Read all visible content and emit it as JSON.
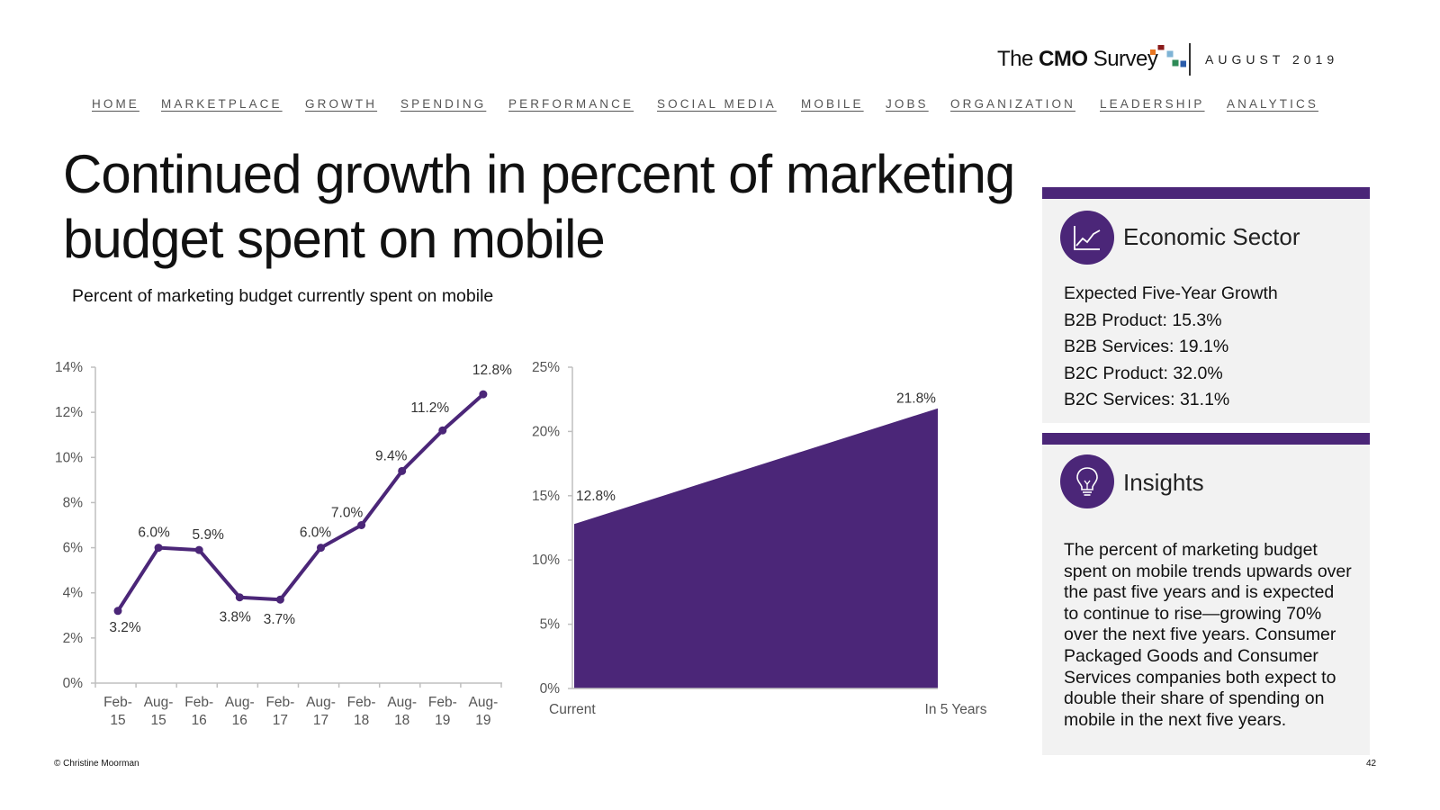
{
  "header": {
    "logo": {
      "pre": "The ",
      "bold": "CMO",
      "post": " Survey"
    },
    "date": "AUGUST 2019",
    "dot_colors": [
      "#e87722",
      "#8b1a1a",
      "#7fb3d5",
      "#2e8b57",
      "#2a5caa"
    ]
  },
  "nav": [
    "HOME",
    "MARKETPLACE",
    "GROWTH",
    "SPENDING",
    "PERFORMANCE",
    "SOCIAL MEDIA",
    "MOBILE",
    "JOBS",
    "ORGANIZATION",
    "LEADERSHIP",
    "ANALYTICS"
  ],
  "title": "Continued growth in percent of marketing budget spent on mobile",
  "subtitle": "Percent of marketing budget currently spent on mobile",
  "chart_data": [
    {
      "type": "line",
      "color": "#4b2678",
      "categories": [
        [
          "Feb-",
          "15"
        ],
        [
          "Aug-",
          "15"
        ],
        [
          "Feb-",
          "16"
        ],
        [
          "Aug-",
          "16"
        ],
        [
          "Feb-",
          "17"
        ],
        [
          "Aug-",
          "17"
        ],
        [
          "Feb-",
          "18"
        ],
        [
          "Aug-",
          "18"
        ],
        [
          "Feb-",
          "19"
        ],
        [
          "Aug-",
          "19"
        ]
      ],
      "values": [
        3.2,
        6.0,
        5.9,
        3.8,
        3.7,
        6.0,
        7.0,
        9.4,
        11.2,
        12.8
      ],
      "data_labels": [
        "3.2%",
        "6.0%",
        "5.9%",
        "3.8%",
        "3.7%",
        "6.0%",
        "7.0%",
        "9.4%",
        "11.2%",
        "12.8%"
      ],
      "ylim": [
        0,
        14
      ],
      "yticks": [
        0,
        2,
        4,
        6,
        8,
        10,
        12,
        14
      ],
      "ytick_labels": [
        "0%",
        "2%",
        "4%",
        "6%",
        "8%",
        "10%",
        "12%",
        "14%"
      ]
    },
    {
      "type": "area",
      "color": "#4b2678",
      "categories": [
        "Current",
        "In 5 Years"
      ],
      "values": [
        12.8,
        21.8
      ],
      "data_labels": [
        "12.8%",
        "21.8%"
      ],
      "ylim": [
        0,
        25
      ],
      "yticks": [
        0,
        5,
        10,
        15,
        20,
        25
      ],
      "ytick_labels": [
        "0%",
        "5%",
        "10%",
        "15%",
        "20%",
        "25%"
      ]
    }
  ],
  "panels": {
    "sector": {
      "heading": "Economic Sector",
      "icon": "line-chart-icon",
      "lines": [
        "Expected Five-Year Growth",
        "B2B Product: 15.3%",
        "B2B Services: 19.1%",
        "B2C Product: 32.0%",
        "B2C Services: 31.1%"
      ]
    },
    "insights": {
      "heading": "Insights",
      "icon": "lightbulb-icon",
      "text": "The percent of marketing budget spent on mobile trends upwards over the past five years and is expected to continue to rise—growing 70% over the next five years. Consumer Packaged Goods and Consumer Services companies both expect to double their share of spending on mobile in the next five years."
    }
  },
  "footer": {
    "copyright": "© Christine Moorman",
    "page": "42"
  }
}
